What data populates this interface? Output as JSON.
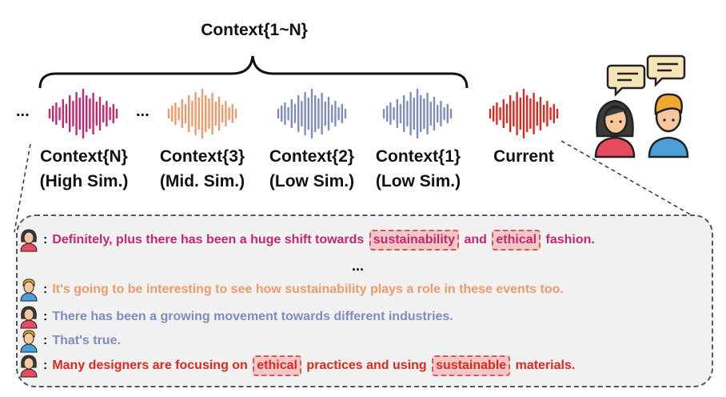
{
  "title": "Context{1~N}",
  "ellipsis": "...",
  "colors": {
    "ctxN": "#c4286f",
    "ctx3": "#ef9a6a",
    "ctx2": "#7f8cc2",
    "ctx1": "#7f8cc2",
    "current": "#e0281f",
    "highlight_border": "#d05a5a"
  },
  "contexts": [
    {
      "name": "Context{N}",
      "sim": "(High Sim.)"
    },
    {
      "name": "Context{3}",
      "sim": "(Mid. Sim.)"
    },
    {
      "name": "Context{2}",
      "sim": "(Low Sim.)"
    },
    {
      "name": "Context{1}",
      "sim": "(Low Sim.)"
    }
  ],
  "current_label": "Current",
  "dialogue": [
    {
      "speaker": "woman",
      "color": "#c4286f",
      "parts": [
        {
          "text": "Definitely, plus there has been a huge shift towards "
        },
        {
          "text": "sustainability",
          "hl": true
        },
        {
          "text": " and "
        },
        {
          "text": "ethical",
          "hl": true
        },
        {
          "text": " fashion."
        }
      ]
    },
    {
      "speaker": "man",
      "color": "#ef9a6a",
      "parts": [
        {
          "text": "It's going to be interesting to see how sustainability plays a role in these events too."
        }
      ]
    },
    {
      "speaker": "woman",
      "color": "#7f8cc2",
      "parts": [
        {
          "text": "There has been a growing movement towards different industries."
        }
      ]
    },
    {
      "speaker": "man",
      "color": "#7f8cc2",
      "parts": [
        {
          "text": "That's true."
        }
      ]
    },
    {
      "speaker": "woman",
      "color": "#e0281f",
      "parts": [
        {
          "text": "Many designers are focusing on "
        },
        {
          "text": "ethical",
          "hl": true
        },
        {
          "text": " practices and using "
        },
        {
          "text": "sustainable",
          "hl": true
        },
        {
          "text": " materials."
        }
      ]
    }
  ],
  "dialogue_ellipsis": "..."
}
